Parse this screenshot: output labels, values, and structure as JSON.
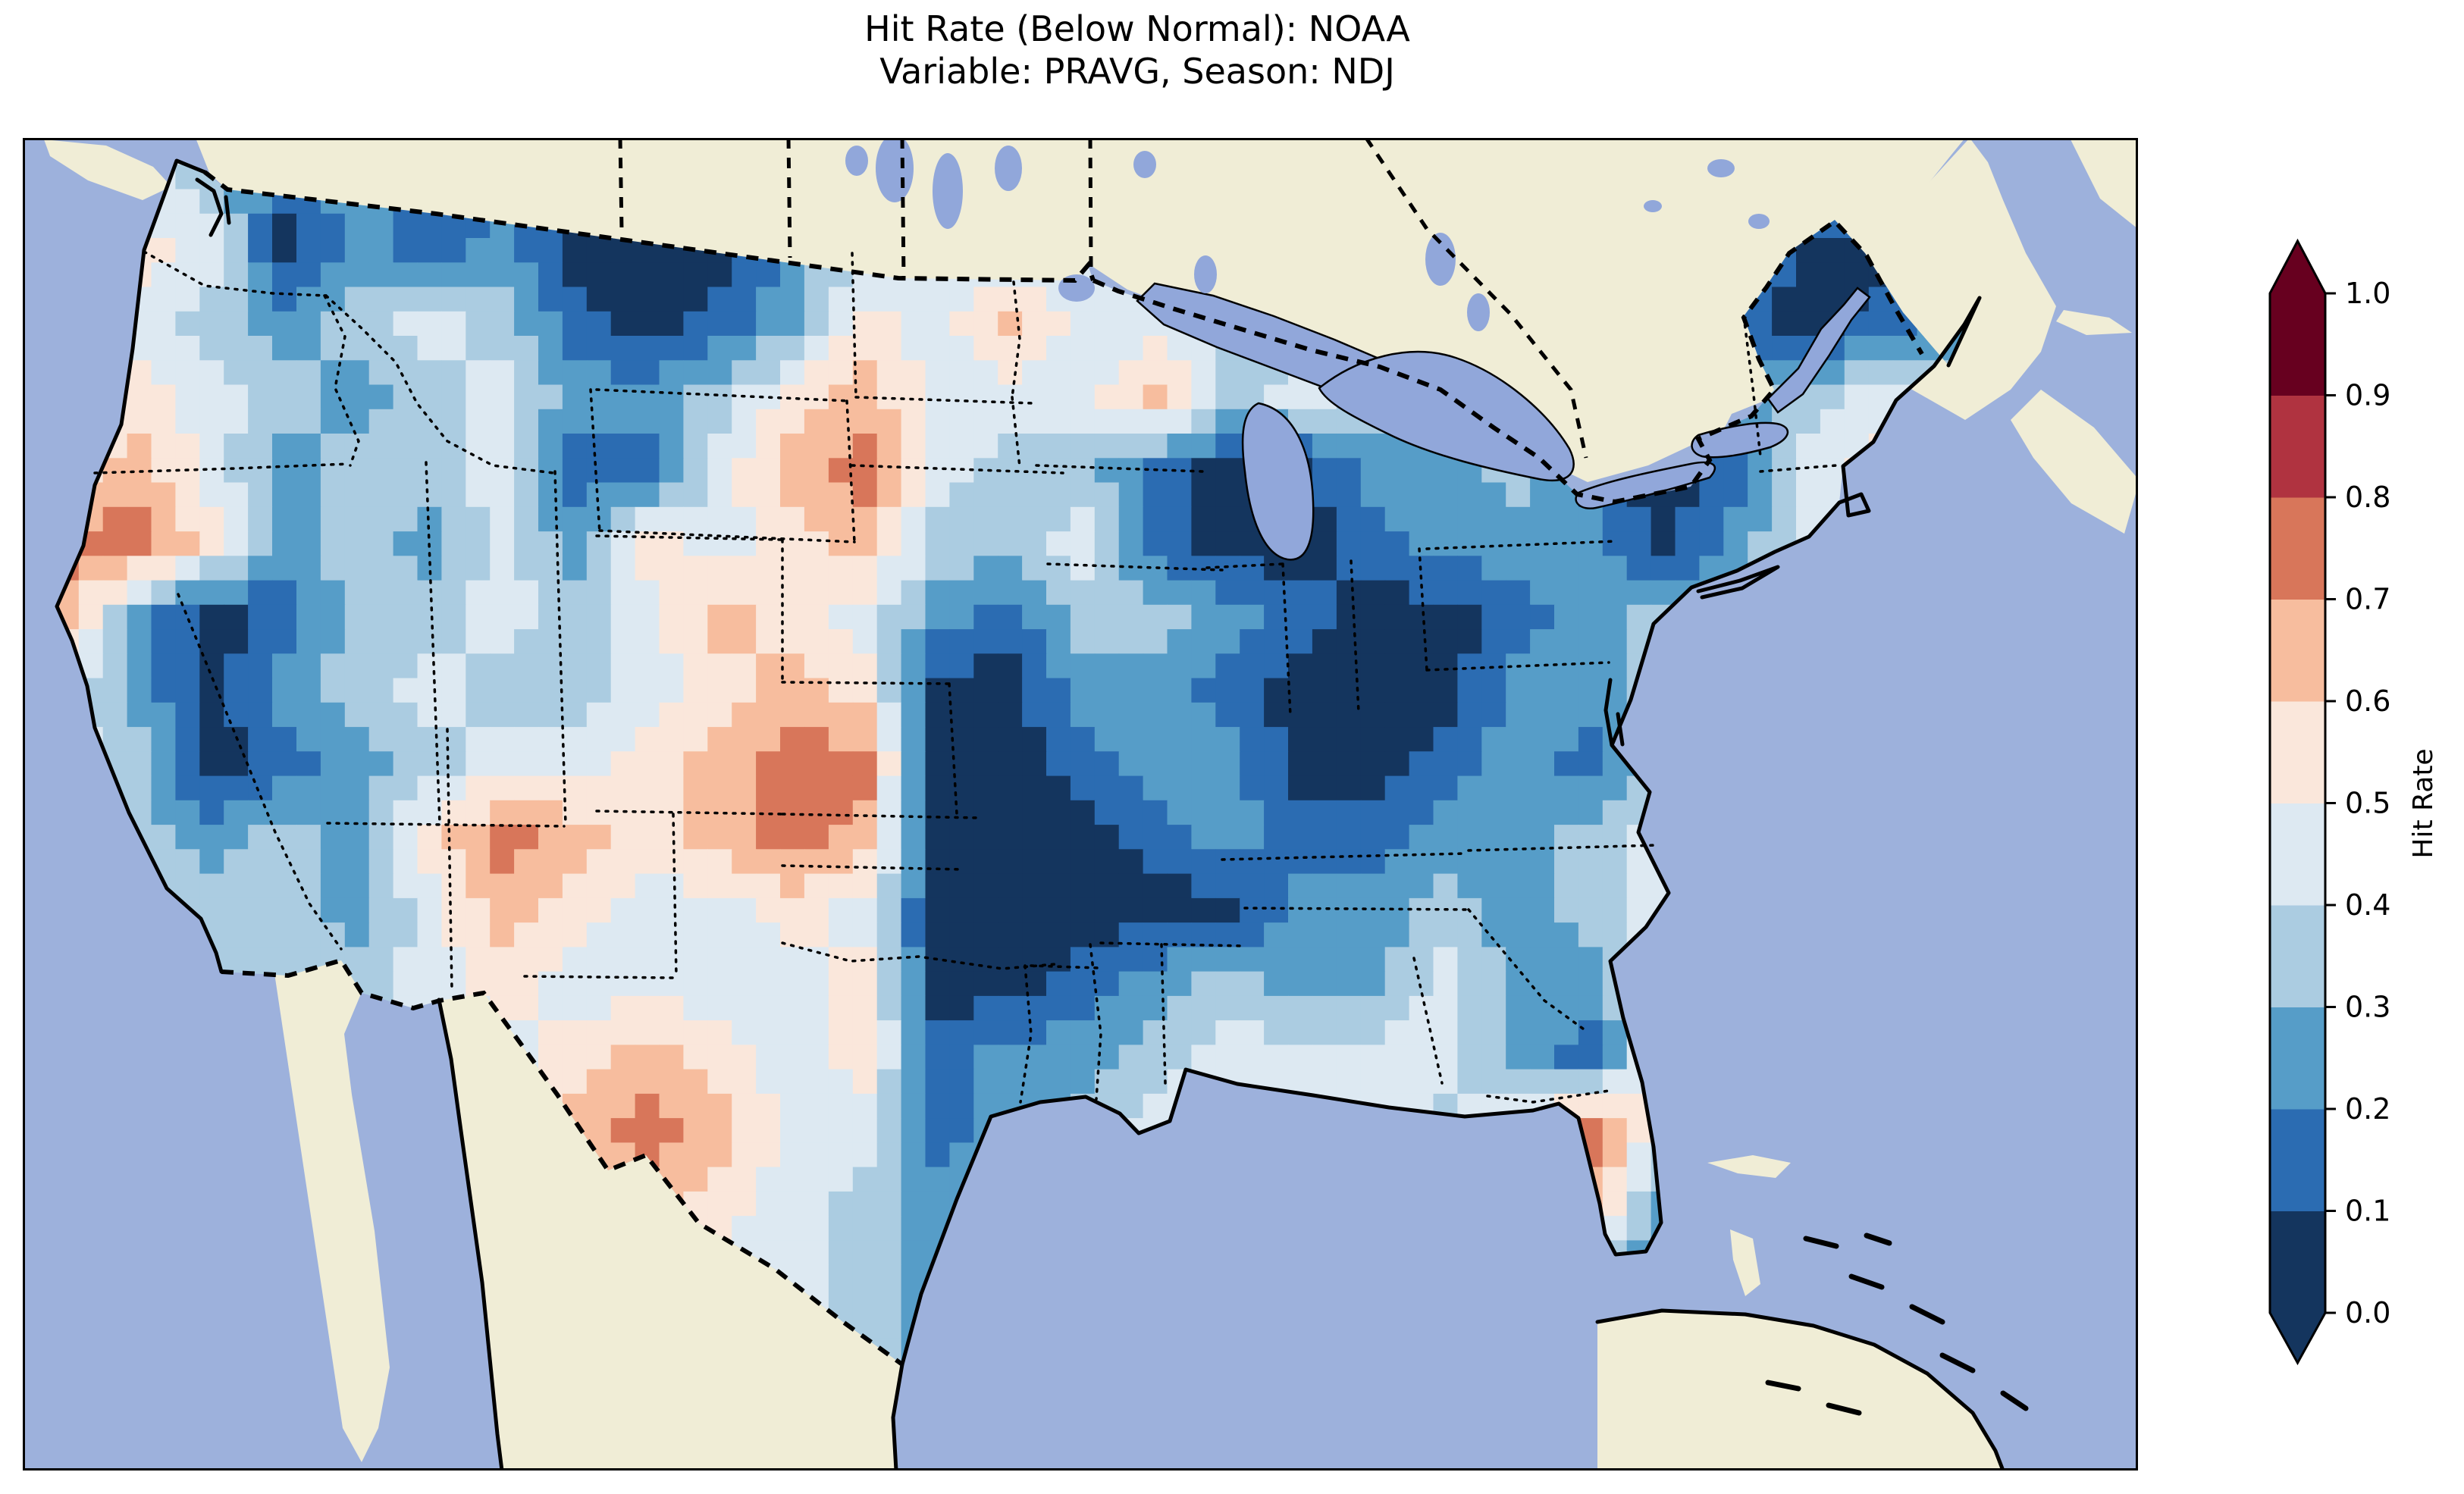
{
  "title": {
    "line1": "Hit Rate (Below Normal): NOAA",
    "line2": "Variable: PRAVG, Season: NDJ"
  },
  "colorbar": {
    "label": "Hit Rate",
    "ticks": [
      "1.0",
      "0.9",
      "0.8",
      "0.7",
      "0.6",
      "0.5",
      "0.4",
      "0.3",
      "0.2",
      "0.1",
      "0.0"
    ],
    "bin_colors": [
      "#14355e",
      "#2b6cb2",
      "#569dc8",
      "#abcce1",
      "#dde9f2",
      "#fae7db",
      "#f7bd9e",
      "#d8765a",
      "#b03340",
      "#67001f"
    ],
    "under_color": "#14355e",
    "over_color": "#67001f"
  },
  "map_colors": {
    "ocean": "#9db1dc",
    "land": "#f0edd6",
    "lakes": "#91a7da",
    "coastline": "#000000",
    "frame": "#000000"
  },
  "chart_data": {
    "type": "heatmap",
    "title": "Hit Rate (Below Normal): NOAA — Variable: PRAVG, Season: NDJ",
    "region_shown": "Contiguous United States (values masked outside US)",
    "colorbar_label": "Hit Rate",
    "value_range": [
      0.0,
      1.0
    ],
    "bin_width": 0.1,
    "legend_position": "right",
    "grid_note": "Approximate hit-rate field read from the map, coarse 28x17 grid, row-major from north to south, west to east; bin-center values.",
    "ncols": 28,
    "nrows": 17,
    "values": [
      [
        0.45,
        0.45,
        0.35,
        0.15,
        0.25,
        0.15,
        0.15,
        0.05,
        0.15,
        0.25,
        0.35,
        0.35,
        0.45,
        0.45,
        0.45,
        0.35,
        0.35,
        0.35,
        0.35,
        0.35,
        0.35,
        0.35,
        0.35,
        0.25,
        0.25,
        0.35,
        0.35,
        0.35
      ],
      [
        0.45,
        0.55,
        0.45,
        0.05,
        0.25,
        0.15,
        0.25,
        0.05,
        0.05,
        0.05,
        0.25,
        0.35,
        0.45,
        0.35,
        0.45,
        0.45,
        0.35,
        0.35,
        0.35,
        0.35,
        0.35,
        0.35,
        0.35,
        0.25,
        0.05,
        0.05,
        0.25,
        0.35
      ],
      [
        0.55,
        0.45,
        0.35,
        0.25,
        0.35,
        0.45,
        0.35,
        0.15,
        0.05,
        0.15,
        0.25,
        0.55,
        0.45,
        0.65,
        0.45,
        0.45,
        0.35,
        0.35,
        0.25,
        0.35,
        0.35,
        0.35,
        0.25,
        0.15,
        0.05,
        0.15,
        0.25,
        0.35
      ],
      [
        0.45,
        0.55,
        0.45,
        0.35,
        0.25,
        0.35,
        0.45,
        0.25,
        0.25,
        0.35,
        0.55,
        0.65,
        0.45,
        0.45,
        0.45,
        0.65,
        0.35,
        0.45,
        0.35,
        0.25,
        0.35,
        0.25,
        0.25,
        0.25,
        0.35,
        0.45,
        0.35,
        0.35
      ],
      [
        0.55,
        0.65,
        0.45,
        0.25,
        0.35,
        0.35,
        0.45,
        0.15,
        0.15,
        0.45,
        0.65,
        0.75,
        0.45,
        0.35,
        0.35,
        0.15,
        0.05,
        0.05,
        0.25,
        0.25,
        0.35,
        0.15,
        0.05,
        0.15,
        0.45,
        0.55,
        0.45,
        0.35
      ],
      [
        0.75,
        0.75,
        0.55,
        0.25,
        0.35,
        0.25,
        0.45,
        0.25,
        0.55,
        0.45,
        0.55,
        0.65,
        0.35,
        0.35,
        0.45,
        0.15,
        0.05,
        0.05,
        0.15,
        0.25,
        0.25,
        0.25,
        0.05,
        0.25,
        0.45,
        0.55,
        0.45,
        0.35
      ],
      [
        0.65,
        0.25,
        0.05,
        0.15,
        0.35,
        0.35,
        0.45,
        0.35,
        0.45,
        0.65,
        0.55,
        0.45,
        0.25,
        0.15,
        0.35,
        0.35,
        0.25,
        0.15,
        0.05,
        0.05,
        0.15,
        0.25,
        0.35,
        0.35,
        0.45,
        0.45,
        0.35,
        0.35
      ],
      [
        0.45,
        0.25,
        0.05,
        0.25,
        0.35,
        0.45,
        0.35,
        0.35,
        0.45,
        0.55,
        0.65,
        0.55,
        0.05,
        0.05,
        0.25,
        0.25,
        0.15,
        0.05,
        0.05,
        0.05,
        0.25,
        0.25,
        0.35,
        0.45,
        0.55,
        0.45,
        0.35,
        0.35
      ],
      [
        0.45,
        0.35,
        0.05,
        0.15,
        0.25,
        0.35,
        0.45,
        0.45,
        0.55,
        0.65,
        0.75,
        0.75,
        0.05,
        0.05,
        0.15,
        0.25,
        0.25,
        0.05,
        0.05,
        0.15,
        0.25,
        0.15,
        0.35,
        0.45,
        0.55,
        0.45,
        0.35,
        0.35
      ],
      [
        0.45,
        0.35,
        0.25,
        0.35,
        0.25,
        0.55,
        0.75,
        0.65,
        0.55,
        0.65,
        0.75,
        0.65,
        0.05,
        0.05,
        0.05,
        0.15,
        0.25,
        0.15,
        0.15,
        0.25,
        0.25,
        0.35,
        0.45,
        0.65,
        0.55,
        0.45,
        0.35,
        0.35
      ],
      [
        0.45,
        0.45,
        0.35,
        0.35,
        0.25,
        0.45,
        0.65,
        0.55,
        0.45,
        0.45,
        0.55,
        0.45,
        0.05,
        0.05,
        0.05,
        0.05,
        0.05,
        0.25,
        0.25,
        0.35,
        0.25,
        0.35,
        0.45,
        0.55,
        0.65,
        0.45,
        0.35,
        0.35
      ],
      [
        0.45,
        0.45,
        0.35,
        0.35,
        0.35,
        0.45,
        0.55,
        0.45,
        0.45,
        0.45,
        0.45,
        0.55,
        0.05,
        0.05,
        0.15,
        0.25,
        0.35,
        0.25,
        0.25,
        0.45,
        0.25,
        0.25,
        0.45,
        0.55,
        0.55,
        0.45,
        0.35,
        0.35
      ],
      [
        0.45,
        0.45,
        0.45,
        0.35,
        0.35,
        0.45,
        0.45,
        0.55,
        0.65,
        0.55,
        0.45,
        0.55,
        0.15,
        0.25,
        0.25,
        0.35,
        0.45,
        0.45,
        0.45,
        0.45,
        0.25,
        0.15,
        0.55,
        0.55,
        0.45,
        0.35,
        0.35,
        0.35
      ],
      [
        0.45,
        0.45,
        0.45,
        0.35,
        0.35,
        0.45,
        0.45,
        0.65,
        0.75,
        0.65,
        0.45,
        0.45,
        0.15,
        0.25,
        0.35,
        0.45,
        0.45,
        0.55,
        0.45,
        0.35,
        0.55,
        0.75,
        0.45,
        0.35,
        0.35,
        0.35,
        0.35,
        0.35
      ],
      [
        0.45,
        0.45,
        0.45,
        0.35,
        0.35,
        0.45,
        0.55,
        0.65,
        0.65,
        0.55,
        0.45,
        0.35,
        0.25,
        0.35,
        0.35,
        0.45,
        0.45,
        0.45,
        0.45,
        0.35,
        0.45,
        0.65,
        0.25,
        0.35,
        0.35,
        0.35,
        0.35,
        0.35
      ],
      [
        0.45,
        0.45,
        0.45,
        0.35,
        0.35,
        0.45,
        0.45,
        0.55,
        0.55,
        0.45,
        0.45,
        0.35,
        0.25,
        0.25,
        0.35,
        0.45,
        0.45,
        0.45,
        0.45,
        0.45,
        0.45,
        0.35,
        0.15,
        0.25,
        0.35,
        0.35,
        0.35,
        0.35
      ],
      [
        0.45,
        0.45,
        0.45,
        0.35,
        0.35,
        0.45,
        0.45,
        0.45,
        0.45,
        0.45,
        0.45,
        0.35,
        0.25,
        0.35,
        0.35,
        0.45,
        0.45,
        0.45,
        0.45,
        0.45,
        0.45,
        0.35,
        0.25,
        0.35,
        0.35,
        0.35,
        0.35,
        0.35
      ]
    ]
  }
}
